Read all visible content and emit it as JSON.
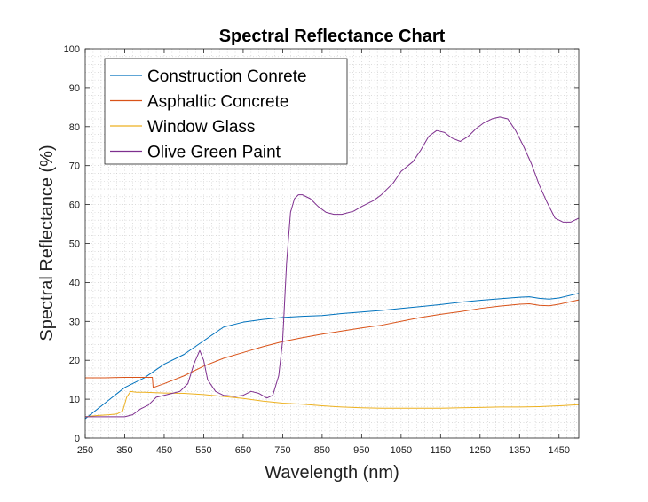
{
  "chart_data": {
    "type": "line",
    "title": "Spectral Reflectance Chart",
    "xlabel": "Wavelength (nm)",
    "ylabel": "Spectral Reflectance (%)",
    "xlim": [
      250,
      1500
    ],
    "ylim": [
      0,
      100
    ],
    "xticks": [
      250,
      350,
      450,
      550,
      650,
      750,
      850,
      950,
      1050,
      1150,
      1250,
      1350,
      1450
    ],
    "yticks": [
      0,
      10,
      20,
      30,
      40,
      50,
      60,
      70,
      80,
      90,
      100
    ],
    "grid": "minor-dotted",
    "legend_position": "top-left",
    "series": [
      {
        "name": "Construction Conrete",
        "color": "#0072BD",
        "points": [
          [
            250,
            5
          ],
          [
            300,
            9
          ],
          [
            350,
            13
          ],
          [
            400,
            15.5
          ],
          [
            450,
            19
          ],
          [
            500,
            21.5
          ],
          [
            550,
            25
          ],
          [
            600,
            28.5
          ],
          [
            650,
            29.8
          ],
          [
            700,
            30.5
          ],
          [
            750,
            31
          ],
          [
            800,
            31.3
          ],
          [
            850,
            31.5
          ],
          [
            900,
            32
          ],
          [
            950,
            32.4
          ],
          [
            1000,
            32.8
          ],
          [
            1050,
            33.3
          ],
          [
            1100,
            33.8
          ],
          [
            1150,
            34.3
          ],
          [
            1200,
            34.9
          ],
          [
            1250,
            35.4
          ],
          [
            1300,
            35.8
          ],
          [
            1350,
            36.2
          ],
          [
            1375,
            36.3
          ],
          [
            1400,
            35.9
          ],
          [
            1425,
            35.7
          ],
          [
            1450,
            36
          ],
          [
            1500,
            37.2
          ]
        ]
      },
      {
        "name": "Asphaltic Concrete",
        "color": "#D95319",
        "points": [
          [
            250,
            15.5
          ],
          [
            300,
            15.5
          ],
          [
            350,
            15.6
          ],
          [
            400,
            15.6
          ],
          [
            415,
            15.6
          ],
          [
            420,
            15.6
          ],
          [
            422,
            13
          ],
          [
            428,
            13.2
          ],
          [
            450,
            14
          ],
          [
            500,
            16
          ],
          [
            550,
            18.5
          ],
          [
            600,
            20.5
          ],
          [
            650,
            22
          ],
          [
            700,
            23.5
          ],
          [
            750,
            24.8
          ],
          [
            800,
            25.8
          ],
          [
            850,
            26.7
          ],
          [
            900,
            27.5
          ],
          [
            950,
            28.3
          ],
          [
            1000,
            29
          ],
          [
            1050,
            30
          ],
          [
            1100,
            31
          ],
          [
            1150,
            31.8
          ],
          [
            1200,
            32.5
          ],
          [
            1250,
            33.3
          ],
          [
            1300,
            33.9
          ],
          [
            1350,
            34.4
          ],
          [
            1375,
            34.5
          ],
          [
            1400,
            34.1
          ],
          [
            1425,
            34
          ],
          [
            1450,
            34.4
          ],
          [
            1500,
            35.5
          ]
        ]
      },
      {
        "name": "Window Glass",
        "color": "#EDB120",
        "points": [
          [
            250,
            5.5
          ],
          [
            280,
            5.8
          ],
          [
            310,
            6
          ],
          [
            330,
            6.2
          ],
          [
            345,
            7
          ],
          [
            355,
            10.5
          ],
          [
            365,
            12
          ],
          [
            380,
            11.8
          ],
          [
            400,
            11.8
          ],
          [
            450,
            11.6
          ],
          [
            500,
            11.5
          ],
          [
            550,
            11.2
          ],
          [
            600,
            10.7
          ],
          [
            650,
            10.2
          ],
          [
            700,
            9.5
          ],
          [
            750,
            9
          ],
          [
            800,
            8.7
          ],
          [
            850,
            8.3
          ],
          [
            900,
            8
          ],
          [
            950,
            7.8
          ],
          [
            1000,
            7.7
          ],
          [
            1050,
            7.7
          ],
          [
            1100,
            7.7
          ],
          [
            1150,
            7.7
          ],
          [
            1200,
            7.8
          ],
          [
            1250,
            7.9
          ],
          [
            1300,
            8
          ],
          [
            1350,
            8
          ],
          [
            1400,
            8.1
          ],
          [
            1450,
            8.3
          ],
          [
            1500,
            8.6
          ]
        ]
      },
      {
        "name": "Olive Green Paint",
        "color": "#7E2F8E",
        "points": [
          [
            250,
            5.5
          ],
          [
            300,
            5.5
          ],
          [
            350,
            5.5
          ],
          [
            370,
            6
          ],
          [
            390,
            7.5
          ],
          [
            410,
            8.5
          ],
          [
            430,
            10.5
          ],
          [
            450,
            11
          ],
          [
            470,
            11.5
          ],
          [
            490,
            12
          ],
          [
            510,
            14
          ],
          [
            525,
            19
          ],
          [
            540,
            22.5
          ],
          [
            550,
            20
          ],
          [
            560,
            15
          ],
          [
            580,
            12
          ],
          [
            600,
            11
          ],
          [
            630,
            10.7
          ],
          [
            650,
            11
          ],
          [
            670,
            12
          ],
          [
            690,
            11.5
          ],
          [
            710,
            10.3
          ],
          [
            725,
            11
          ],
          [
            740,
            16
          ],
          [
            750,
            25
          ],
          [
            760,
            45
          ],
          [
            770,
            58
          ],
          [
            780,
            61.5
          ],
          [
            790,
            62.5
          ],
          [
            800,
            62.5
          ],
          [
            820,
            61.5
          ],
          [
            840,
            59.5
          ],
          [
            860,
            58
          ],
          [
            880,
            57.5
          ],
          [
            900,
            57.5
          ],
          [
            930,
            58.3
          ],
          [
            950,
            59.5
          ],
          [
            980,
            61
          ],
          [
            1000,
            62.5
          ],
          [
            1030,
            65.5
          ],
          [
            1050,
            68.5
          ],
          [
            1080,
            71
          ],
          [
            1100,
            74
          ],
          [
            1120,
            77.5
          ],
          [
            1140,
            79
          ],
          [
            1160,
            78.5
          ],
          [
            1180,
            77
          ],
          [
            1200,
            76.2
          ],
          [
            1220,
            77.5
          ],
          [
            1240,
            79.5
          ],
          [
            1260,
            81
          ],
          [
            1280,
            82
          ],
          [
            1300,
            82.5
          ],
          [
            1320,
            82
          ],
          [
            1340,
            79
          ],
          [
            1360,
            75
          ],
          [
            1380,
            70.5
          ],
          [
            1400,
            65
          ],
          [
            1420,
            60.5
          ],
          [
            1440,
            56.5
          ],
          [
            1460,
            55.5
          ],
          [
            1480,
            55.5
          ],
          [
            1500,
            56.5
          ]
        ]
      }
    ]
  }
}
